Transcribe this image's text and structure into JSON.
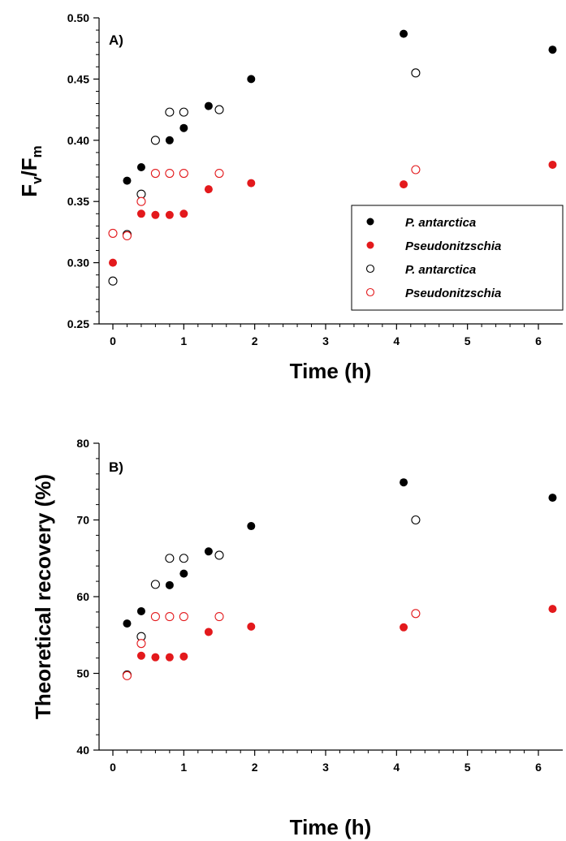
{
  "chart_data": [
    {
      "type": "scatter",
      "panel_label": "A)",
      "xlabel": "Time (h)",
      "ylabel_main": "F",
      "ylabel_sub1": "v",
      "ylabel_mid": "/F",
      "ylabel_sub2": "m",
      "xlim": [
        -0.2,
        6.3
      ],
      "ylim": [
        0.25,
        0.5
      ],
      "xticks": [
        "0",
        "1",
        "2",
        "3",
        "4",
        "5",
        "6"
      ],
      "yticks": [
        "0.25",
        "0.30",
        "0.35",
        "0.40",
        "0.45",
        "0.50"
      ],
      "legend_position": "right",
      "series": [
        {
          "name": "P. antarctica",
          "color": "#000000",
          "filled": true,
          "x": [
            0.2,
            0.4,
            0.8,
            1.0,
            1.35,
            1.95,
            4.1,
            6.2
          ],
          "y": [
            0.367,
            0.378,
            0.4,
            0.41,
            0.428,
            0.45,
            0.487,
            0.474
          ]
        },
        {
          "name": "Pseudonitzschia",
          "color": "#e3191c",
          "filled": true,
          "x": [
            0.0,
            0.4,
            0.6,
            0.8,
            1.0,
            1.35,
            1.95,
            4.1,
            6.2
          ],
          "y": [
            0.3,
            0.34,
            0.339,
            0.339,
            0.34,
            0.36,
            0.365,
            0.364,
            0.38
          ]
        },
        {
          "name": "P. antarctica",
          "color": "#000000",
          "filled": false,
          "x": [
            0.0,
            0.2,
            0.4,
            0.6,
            0.8,
            1.0,
            1.5,
            4.27
          ],
          "y": [
            0.285,
            0.323,
            0.356,
            0.4,
            0.423,
            0.423,
            0.425,
            0.455
          ]
        },
        {
          "name": "Pseudonitzschia",
          "color": "#e3191c",
          "filled": false,
          "x": [
            0.0,
            0.2,
            0.4,
            0.6,
            0.8,
            1.0,
            1.5,
            4.27
          ],
          "y": [
            0.324,
            0.322,
            0.35,
            0.373,
            0.373,
            0.373,
            0.373,
            0.376
          ]
        }
      ]
    },
    {
      "type": "scatter",
      "panel_label": "B)",
      "xlabel": "Time (h)",
      "ylabel": "Theoretical recovery (%)",
      "xlim": [
        -0.2,
        6.3
      ],
      "ylim": [
        40,
        80
      ],
      "xticks": [
        "0",
        "1",
        "2",
        "3",
        "4",
        "5",
        "6"
      ],
      "yticks": [
        "40",
        "50",
        "60",
        "70",
        "80"
      ],
      "series": [
        {
          "color": "#000000",
          "filled": true,
          "x": [
            0.2,
            0.4,
            0.8,
            1.0,
            1.35,
            1.95,
            4.1,
            6.2
          ],
          "y": [
            56.5,
            58.1,
            61.5,
            63.0,
            65.9,
            69.2,
            74.9,
            72.9
          ]
        },
        {
          "color": "#e3191c",
          "filled": true,
          "x": [
            0.4,
            0.6,
            0.8,
            1.0,
            1.35,
            1.95,
            4.1,
            6.2
          ],
          "y": [
            52.3,
            52.1,
            52.1,
            52.2,
            55.4,
            56.1,
            56.0,
            58.4
          ]
        },
        {
          "color": "#000000",
          "filled": false,
          "x": [
            0.2,
            0.4,
            0.6,
            0.8,
            1.0,
            1.5,
            4.27
          ],
          "y": [
            49.8,
            54.8,
            61.6,
            65.0,
            65.0,
            65.4,
            70.0
          ]
        },
        {
          "color": "#e3191c",
          "filled": false,
          "x": [
            0.2,
            0.4,
            0.6,
            0.8,
            1.0,
            1.5,
            4.27
          ],
          "y": [
            49.7,
            53.9,
            57.4,
            57.4,
            57.4,
            57.4,
            57.8
          ]
        }
      ]
    }
  ]
}
